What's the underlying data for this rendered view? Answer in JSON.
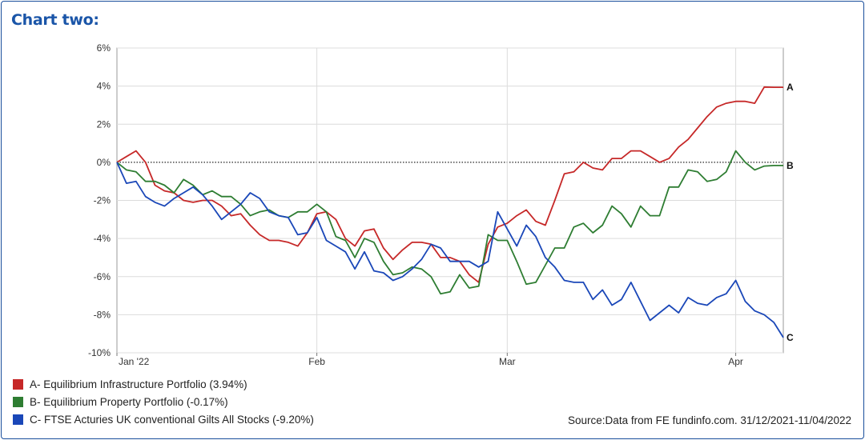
{
  "heading": "Chart two:",
  "source": "Source:Data from FE fundinfo.com. 31/12/2021-11/04/2022",
  "chart_data": {
    "type": "line",
    "ylim": [
      -10,
      6
    ],
    "yticks": [
      6,
      4,
      2,
      0,
      -2,
      -4,
      -6,
      -8,
      -10
    ],
    "ytick_labels": [
      "6%",
      "4%",
      "2%",
      "0%",
      "-2%",
      "-4%",
      "-6%",
      "-8%",
      "-10%"
    ],
    "x_labels": [
      {
        "label": "Jan '22",
        "index": 0
      },
      {
        "label": "Feb",
        "index": 21
      },
      {
        "label": "Mar",
        "index": 41
      },
      {
        "label": "Apr",
        "index": 65
      }
    ],
    "grid": true,
    "zero_line": "dotted",
    "series": [
      {
        "name": "A- Equilibrium Infrastructure Portfolio (3.94%)",
        "end_label": "A",
        "color": "#c62828",
        "values": [
          0,
          0.3,
          0.6,
          0,
          -1.2,
          -1.5,
          -1.6,
          -2.0,
          -2.1,
          -2.0,
          -2.0,
          -2.3,
          -2.8,
          -2.7,
          -3.3,
          -3.8,
          -4.1,
          -4.1,
          -4.2,
          -4.4,
          -3.7,
          -2.7,
          -2.6,
          -3.0,
          -4.0,
          -4.4,
          -3.6,
          -3.5,
          -4.5,
          -5.1,
          -4.6,
          -4.2,
          -4.2,
          -4.3,
          -5.0,
          -5.0,
          -5.2,
          -5.9,
          -6.3,
          -4.3,
          -3.4,
          -3.2,
          -2.8,
          -2.5,
          -3.1,
          -3.3,
          -2.0,
          -0.6,
          -0.5,
          0,
          -0.3,
          -0.4,
          0.2,
          0.2,
          0.6,
          0.6,
          0.3,
          0,
          0.2,
          0.8,
          1.2,
          1.8,
          2.4,
          2.9,
          3.1,
          3.2,
          3.2,
          3.1,
          3.95,
          3.94,
          3.94
        ]
      },
      {
        "name": "B- Equilibrium Property Portfolio (-0.17%)",
        "end_label": "B",
        "color": "#2e7d32",
        "values": [
          0,
          -0.4,
          -0.5,
          -1.0,
          -1.0,
          -1.2,
          -1.6,
          -0.9,
          -1.2,
          -1.7,
          -1.5,
          -1.8,
          -1.8,
          -2.2,
          -2.8,
          -2.6,
          -2.5,
          -2.8,
          -2.9,
          -2.6,
          -2.6,
          -2.2,
          -2.6,
          -3.9,
          -4.1,
          -5.0,
          -4.0,
          -4.2,
          -5.2,
          -5.9,
          -5.8,
          -5.5,
          -5.6,
          -6.0,
          -6.9,
          -6.8,
          -5.9,
          -6.6,
          -6.5,
          -3.8,
          -4.1,
          -4.1,
          -5.2,
          -6.4,
          -6.3,
          -5.4,
          -4.5,
          -4.5,
          -3.4,
          -3.2,
          -3.7,
          -3.3,
          -2.3,
          -2.7,
          -3.4,
          -2.3,
          -2.8,
          -2.8,
          -1.3,
          -1.3,
          -0.4,
          -0.5,
          -1.0,
          -0.9,
          -0.5,
          0.6,
          0,
          -0.4,
          -0.2,
          -0.17,
          -0.17
        ]
      },
      {
        "name": "C- FTSE Acturies UK conventional Gilts All Stocks (-9.20%)",
        "end_label": "C",
        "color": "#1a47b8",
        "values": [
          0,
          -1.1,
          -1.0,
          -1.8,
          -2.1,
          -2.3,
          -1.9,
          -1.6,
          -1.3,
          -1.7,
          -2.3,
          -3.0,
          -2.6,
          -2.2,
          -1.6,
          -1.9,
          -2.6,
          -2.8,
          -2.9,
          -3.8,
          -3.7,
          -2.9,
          -4.1,
          -4.4,
          -4.7,
          -5.6,
          -4.7,
          -5.7,
          -5.8,
          -6.2,
          -6.0,
          -5.6,
          -5.1,
          -4.3,
          -4.5,
          -5.2,
          -5.2,
          -5.2,
          -5.5,
          -5.2,
          -2.6,
          -3.5,
          -4.4,
          -3.3,
          -3.9,
          -5.0,
          -5.5,
          -6.2,
          -6.3,
          -6.3,
          -7.2,
          -6.7,
          -7.5,
          -7.2,
          -6.3,
          -7.3,
          -8.3,
          -7.9,
          -7.5,
          -7.9,
          -7.1,
          -7.4,
          -7.5,
          -7.1,
          -6.9,
          -6.2,
          -7.3,
          -7.8,
          -8.0,
          -8.4,
          -9.2
        ]
      }
    ]
  }
}
